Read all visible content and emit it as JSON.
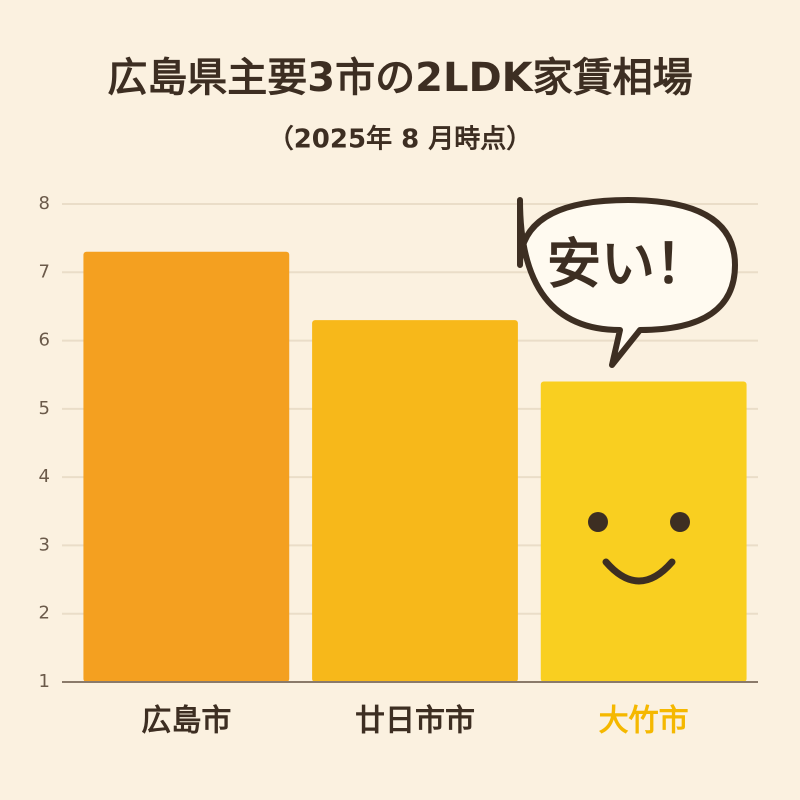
{
  "chart_data": {
    "type": "bar",
    "title": "広島県主要3市の2LDK家賃相場",
    "subtitle": "（2025年 8 月時点）",
    "categories": [
      "広島市",
      "廿日市市",
      "大竹市"
    ],
    "values": [
      7.3,
      6.3,
      5.4
    ],
    "colors": [
      "#f4a020",
      "#f7b81a",
      "#f9cf20"
    ],
    "category_label_colors": [
      "#3d2e22",
      "#3d2e22",
      "#f5b800"
    ],
    "annotation": "安い！",
    "ylim": [
      1,
      8
    ],
    "yticks": [
      1,
      2,
      3,
      4,
      5,
      6,
      7,
      8
    ],
    "grid": true
  }
}
